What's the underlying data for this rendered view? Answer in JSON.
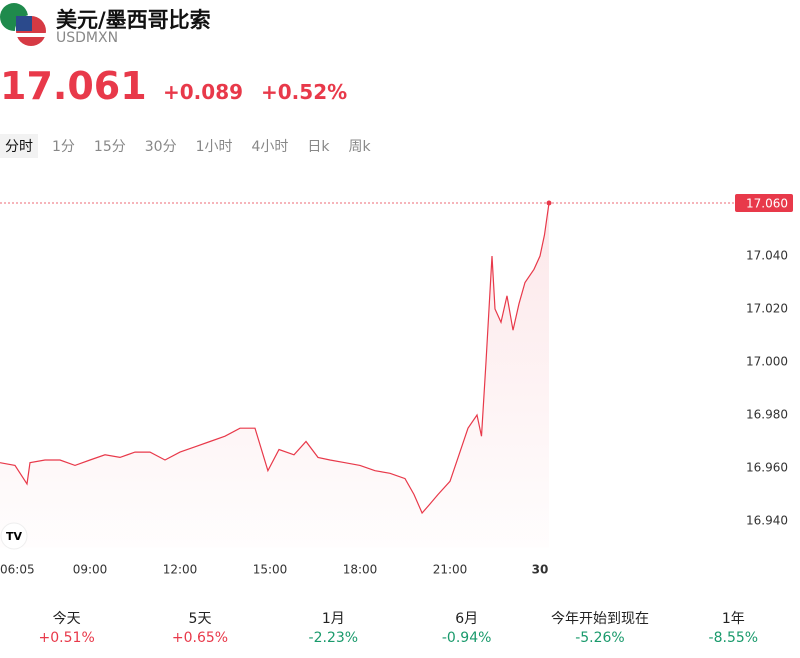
{
  "header": {
    "title": "美元/墨西哥比索",
    "symbol": "USDMXN"
  },
  "quote": {
    "price": "17.061",
    "change": "+0.089",
    "change_pct": "+0.52%"
  },
  "tabs": [
    "分时",
    "1分",
    "15分",
    "30分",
    "1小时",
    "4小时",
    "日k",
    "周k"
  ],
  "chart_data": {
    "type": "line",
    "color": "#e8394a",
    "x": [
      6.0,
      6.5,
      6.9,
      7.0,
      7.5,
      8.0,
      8.5,
      9.0,
      9.5,
      10.0,
      10.5,
      11.0,
      11.5,
      12.0,
      12.5,
      13.0,
      13.5,
      14.0,
      14.5,
      14.93,
      15.3,
      15.8,
      16.2,
      16.6,
      17.0,
      17.5,
      18.0,
      18.5,
      19.0,
      19.5,
      19.8,
      20.07,
      20.3,
      20.6,
      21.0,
      21.3,
      21.6,
      21.9,
      22.05,
      22.2,
      22.4,
      22.5,
      22.7,
      22.9,
      23.1,
      23.3,
      23.5,
      23.8,
      24.0,
      24.15,
      24.3
    ],
    "values": [
      16.962,
      16.961,
      16.954,
      16.962,
      16.963,
      16.963,
      16.961,
      16.963,
      16.965,
      16.964,
      16.966,
      16.966,
      16.963,
      16.966,
      16.968,
      16.97,
      16.972,
      16.975,
      16.975,
      16.959,
      16.967,
      16.965,
      16.97,
      16.964,
      16.963,
      16.962,
      16.961,
      16.959,
      16.958,
      16.956,
      16.95,
      16.943,
      16.946,
      16.95,
      16.955,
      16.965,
      16.975,
      16.98,
      16.972,
      17.0,
      17.04,
      17.02,
      17.015,
      17.025,
      17.012,
      17.022,
      17.03,
      17.035,
      17.04,
      17.048,
      17.06
    ],
    "xlim": [
      6,
      30.5
    ],
    "xticks": [
      {
        "value": 6.0833,
        "label": "06:05"
      },
      {
        "value": 9,
        "label": "09:00"
      },
      {
        "value": 12,
        "label": "12:00"
      },
      {
        "value": 15,
        "label": "15:00"
      },
      {
        "value": 18,
        "label": "18:00"
      },
      {
        "value": 21,
        "label": "21:00"
      },
      {
        "value": 24,
        "label": "30"
      }
    ],
    "ylim": [
      16.93,
      17.07
    ],
    "yticks": [
      {
        "value": 16.94,
        "label": "16.940"
      },
      {
        "value": 16.96,
        "label": "16.960"
      },
      {
        "value": 16.98,
        "label": "16.980"
      },
      {
        "value": 17.0,
        "label": "17.000"
      },
      {
        "value": 17.02,
        "label": "17.020"
      },
      {
        "value": 17.04,
        "label": "17.040"
      }
    ],
    "price_line": {
      "value": 17.06,
      "label": "17.060"
    }
  },
  "periods": [
    {
      "name": "今天",
      "change": "+0.51%"
    },
    {
      "name": "5天",
      "change": "+0.65%"
    },
    {
      "name": "1月",
      "change": "-2.23%"
    },
    {
      "name": "6月",
      "change": "-0.94%"
    },
    {
      "name": "今年开始到现在",
      "change": "-5.26%"
    },
    {
      "name": "1年",
      "change": "-8.55%"
    }
  ]
}
